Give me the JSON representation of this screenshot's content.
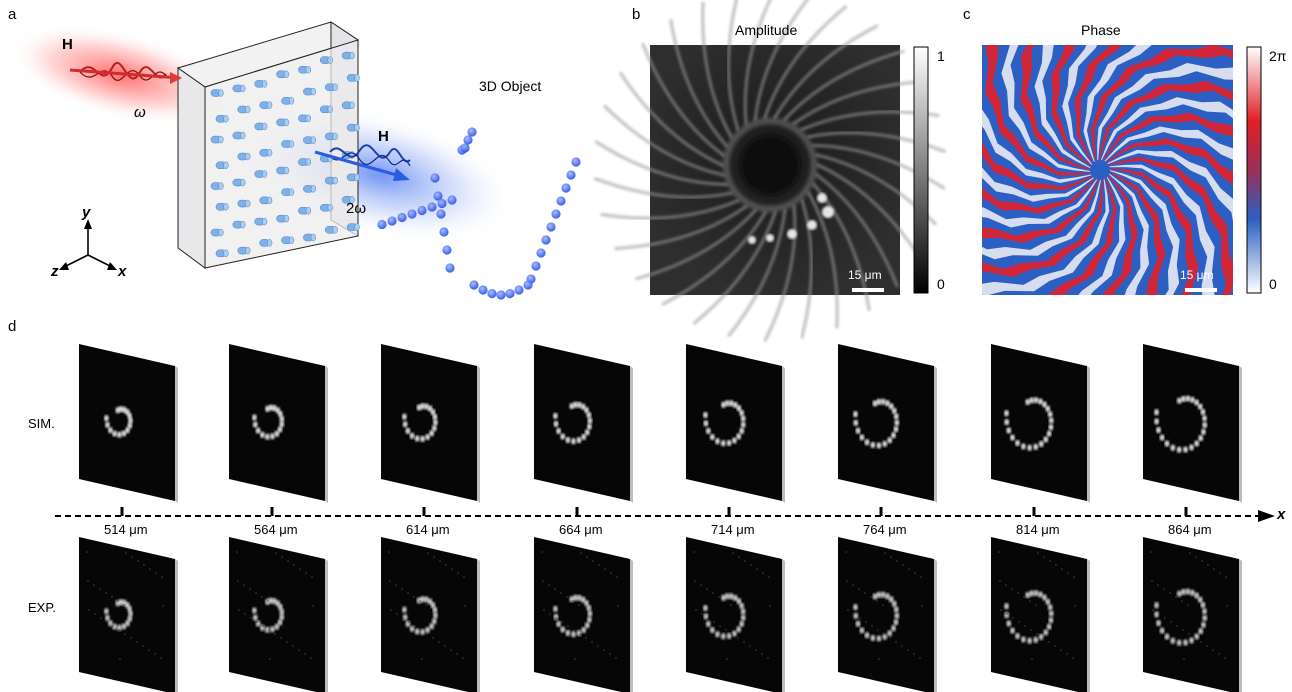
{
  "panels": {
    "a": {
      "letter": "a",
      "h_in": "H",
      "omega": "ω",
      "h_out": "H",
      "two_omega": "2ω",
      "object_label": "3D Object",
      "axes": {
        "y": "y",
        "z": "z",
        "x": "x"
      }
    },
    "b": {
      "letter": "b",
      "title": "Amplitude",
      "colorbar_max": "1",
      "colorbar_min": "0",
      "scalebar": "15 μm"
    },
    "c": {
      "letter": "c",
      "title": "Phase",
      "colorbar_max": "2π",
      "colorbar_min": "0",
      "scalebar": "15 μm"
    },
    "d": {
      "letter": "d",
      "row_sim": "SIM.",
      "row_exp": "EXP.",
      "axis_label": "x",
      "positions": [
        "514 μm",
        "564 μm",
        "614 μm",
        "664 μm",
        "714 μm",
        "764 μm",
        "814 μm",
        "864 μm"
      ]
    }
  },
  "colors": {
    "red_beam": "#e8302a",
    "blue_beam": "#2f62e6",
    "sphere": "#3e62ef",
    "cylinder": "#7fb0e6"
  }
}
